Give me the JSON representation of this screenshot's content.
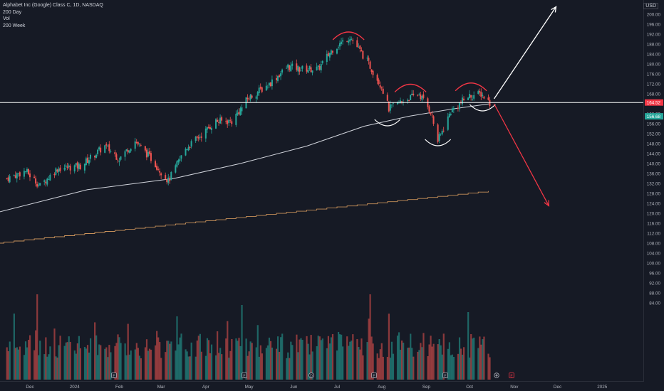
{
  "legend": {
    "symbol": "Alphabet Inc (Google) Class C, 1D, NASDAQ",
    "ma1": "200 Day",
    "vol": "Vol",
    "ma2": "200 Week"
  },
  "currency": "USD",
  "colors": {
    "background": "#161a25",
    "up": "#26a69a",
    "down": "#ef5350",
    "ma200d": "#d1d4dc",
    "ma200w": "#c8915a",
    "breakout_up": "#ffffff",
    "breakout_down": "#f23645",
    "pattern_top": "#f23645",
    "pattern_bottom": "#ffffff"
  },
  "chart_data": {
    "type": "candlestick",
    "ylim": [
      82,
      202
    ],
    "price_ticks": [
      "200.00",
      "196.00",
      "192.00",
      "188.00",
      "184.00",
      "180.00",
      "176.00",
      "172.00",
      "168.00",
      "164.00",
      "160.00",
      "156.00",
      "152.00",
      "148.00",
      "144.00",
      "140.00",
      "136.00",
      "132.00",
      "128.00",
      "124.00",
      "120.00",
      "116.00",
      "112.00",
      "108.00",
      "104.00",
      "100.00",
      "96.00",
      "92.00",
      "88.00",
      "84.00"
    ],
    "time_ticks": [
      "Dec",
      "2024",
      "Feb",
      "Mar",
      "Apr",
      "May",
      "Jun",
      "Jul",
      "Aug",
      "Sep",
      "Oct",
      "Nov",
      "Dec",
      "2025"
    ],
    "last_price": "164.52",
    "prev_price": "156.68",
    "horizontal_line": 164.5,
    "price_path": [
      [
        "2023-11-15",
        134
      ],
      [
        "2023-11-28",
        137
      ],
      [
        "2023-12-08",
        131
      ],
      [
        "2023-12-20",
        138
      ],
      [
        "2024-01-05",
        139
      ],
      [
        "2024-01-22",
        147
      ],
      [
        "2024-02-01",
        142
      ],
      [
        "2024-02-12",
        149
      ],
      [
        "2024-02-23",
        142
      ],
      [
        "2024-03-06",
        133
      ],
      [
        "2024-03-18",
        146
      ],
      [
        "2024-03-28",
        151
      ],
      [
        "2024-04-08",
        157
      ],
      [
        "2024-04-19",
        157
      ],
      [
        "2024-04-24",
        161
      ],
      [
        "2024-04-30",
        166
      ],
      [
        "2024-05-15",
        172
      ],
      [
        "2024-05-28",
        179
      ],
      [
        "2024-06-06",
        178
      ],
      [
        "2024-06-18",
        178
      ],
      [
        "2024-06-28",
        186
      ],
      [
        "2024-07-10",
        191
      ],
      [
        "2024-07-22",
        181
      ],
      [
        "2024-08-01",
        171
      ],
      [
        "2024-08-06",
        162
      ],
      [
        "2024-08-15",
        165
      ],
      [
        "2024-08-27",
        168
      ],
      [
        "2024-09-04",
        161
      ],
      [
        "2024-09-09",
        149
      ],
      [
        "2024-09-18",
        161
      ],
      [
        "2024-09-30",
        167
      ],
      [
        "2024-10-09",
        168
      ],
      [
        "2024-10-15",
        164.5
      ]
    ],
    "ma_200_day": [
      [
        "2023-11-06",
        120
      ],
      [
        "2024-01-10",
        129.5
      ],
      [
        "2024-03-10",
        134
      ],
      [
        "2024-04-25",
        140
      ],
      [
        "2024-06-10",
        147
      ],
      [
        "2024-07-20",
        155
      ],
      [
        "2024-08-20",
        159
      ],
      [
        "2024-09-20",
        162
      ],
      [
        "2024-10-15",
        164
      ]
    ],
    "ma_200_week": [
      [
        "2023-11-06",
        108
      ],
      [
        "2024-05-01",
        120
      ],
      [
        "2024-10-15",
        129
      ]
    ],
    "annotations": {
      "tops": [
        [
          "2024-07-09",
          192
        ],
        [
          "2024-08-21",
          171
        ],
        [
          "2024-10-02",
          171.5
        ]
      ],
      "bottoms": [
        [
          "2024-08-05",
          156
        ],
        [
          "2024-09-09",
          148
        ],
        [
          "2024-10-10",
          162
        ]
      ],
      "arrow_up": [
        [
          "2024-10-18",
          166
        ],
        [
          "2024-11-30",
          203
        ]
      ],
      "arrow_down": [
        [
          "2024-10-18",
          164
        ],
        [
          "2024-11-25",
          123
        ]
      ]
    },
    "event_markers": [
      "E",
      "E",
      "E",
      "D",
      "E",
      "E",
      "D",
      "E",
      "+",
      "E"
    ]
  }
}
